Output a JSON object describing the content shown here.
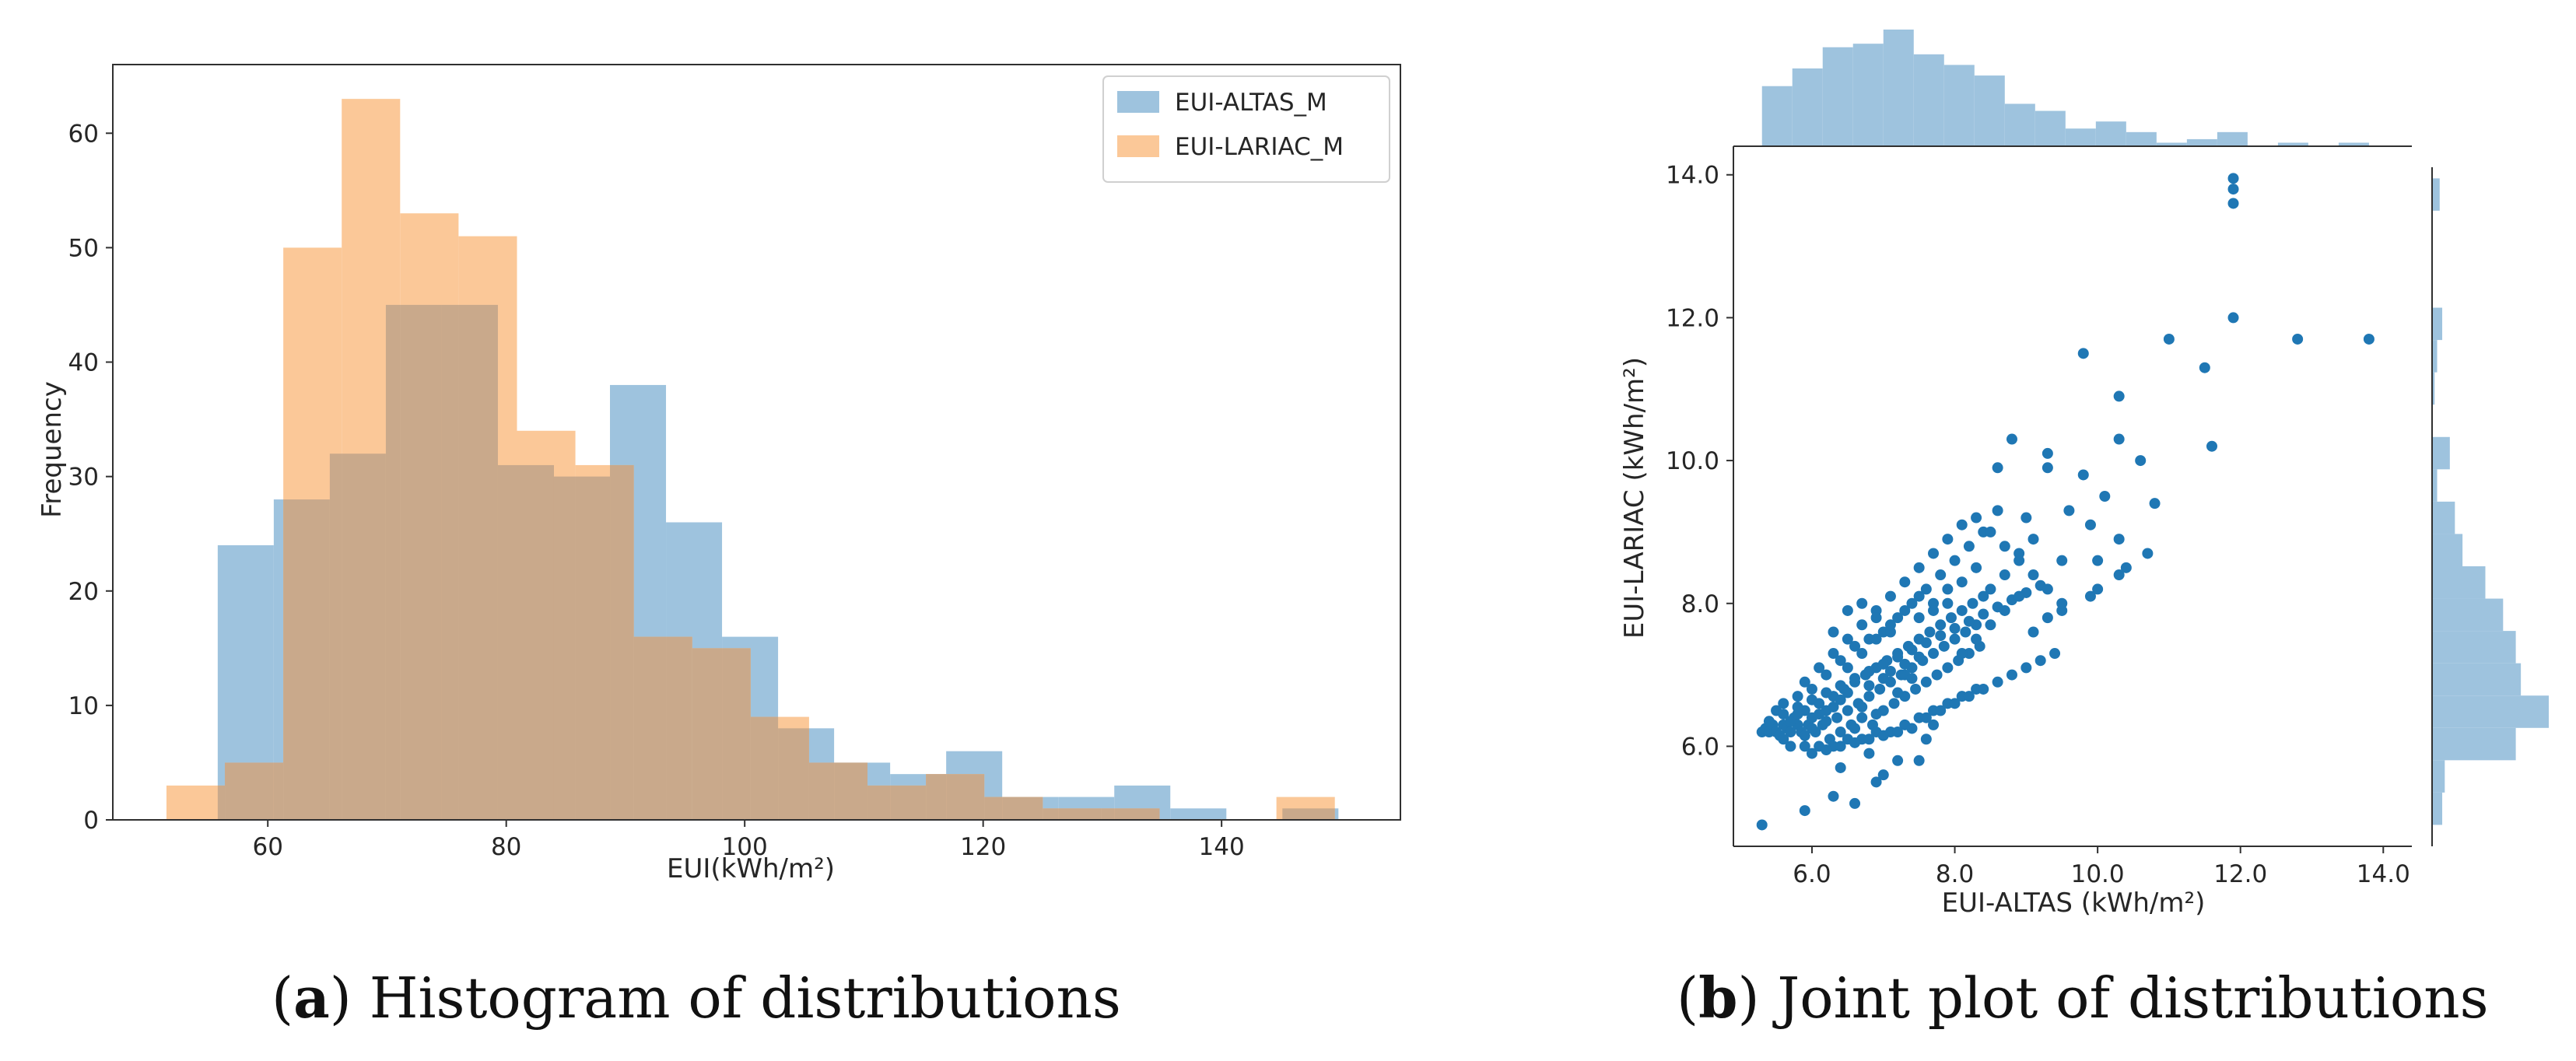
{
  "captions": {
    "a": {
      "letter": "a",
      "text": "Histogram of distributions"
    },
    "b": {
      "letter": "b",
      "text": "Joint plot of distributions"
    }
  },
  "chart_data": [
    {
      "id": "histogram",
      "type": "bar",
      "title": "",
      "xlabel": "EUI(kWh/m²)",
      "ylabel": "Frequency",
      "xlim": [
        47,
        155
      ],
      "ylim": [
        0,
        66
      ],
      "xticks": [
        60,
        80,
        100,
        120,
        140
      ],
      "yticks": [
        0,
        10,
        20,
        30,
        40,
        50,
        60
      ],
      "legend_position": "top-right",
      "colors": {
        "altas": "#9ec3de",
        "lariac": "#fbc898",
        "overlap": "#c9a98b"
      },
      "series": [
        {
          "name": "EUI-ALTAS_M",
          "bin_edges": [
            55.8,
            60.5,
            65.2,
            69.9,
            74.6,
            79.3,
            84.0,
            88.7,
            93.4,
            98.1,
            102.8,
            107.5,
            112.2,
            116.9,
            121.6,
            126.3,
            131.0,
            135.7,
            140.4,
            145.1,
            149.8
          ],
          "counts": [
            24,
            28,
            32,
            45,
            45,
            31,
            30,
            38,
            26,
            16,
            8,
            5,
            4,
            6,
            2,
            2,
            3,
            1,
            0,
            1
          ]
        },
        {
          "name": "EUI-LARIAC_M",
          "bin_edges": [
            51.5,
            56.4,
            61.3,
            66.2,
            71.1,
            76.0,
            80.9,
            85.8,
            90.7,
            95.6,
            100.5,
            105.4,
            110.3,
            115.2,
            120.1,
            125.0,
            129.9,
            134.8,
            139.7,
            144.6,
            149.5
          ],
          "counts": [
            3,
            5,
            50,
            63,
            53,
            51,
            34,
            31,
            16,
            15,
            9,
            5,
            3,
            4,
            2,
            1,
            1,
            0,
            0,
            2
          ]
        }
      ]
    },
    {
      "id": "joint-plot",
      "type": "scatter",
      "title": "",
      "xlabel": "EUI-ALTAS (kWh/m²)",
      "ylabel": "EUI-LARIAC (kWh/m²)",
      "xlim": [
        4.9,
        14.4
      ],
      "ylim": [
        4.6,
        14.4
      ],
      "xticks": [
        "6.0",
        "8.0",
        "10.0",
        "12.0",
        "14.0"
      ],
      "yticks": [
        "6.0",
        "8.0",
        "10.0",
        "12.0",
        "14.0"
      ],
      "color": "#1f77b4",
      "marginal_color": "#9ec3de",
      "points": [
        [
          11.9,
          13.95
        ],
        [
          11.9,
          13.8
        ],
        [
          11.9,
          13.6
        ],
        [
          11.9,
          12.0
        ],
        [
          12.8,
          11.7
        ],
        [
          13.8,
          11.7
        ],
        [
          11.0,
          11.7
        ],
        [
          11.5,
          11.3
        ],
        [
          9.8,
          11.5
        ],
        [
          10.3,
          10.9
        ],
        [
          11.6,
          10.2
        ],
        [
          10.3,
          10.3
        ],
        [
          10.6,
          10.0
        ],
        [
          10.8,
          9.4
        ],
        [
          8.8,
          10.3
        ],
        [
          9.3,
          10.1
        ],
        [
          9.3,
          9.9
        ],
        [
          9.8,
          9.8
        ],
        [
          10.1,
          9.5
        ],
        [
          9.6,
          9.3
        ],
        [
          8.6,
          9.9
        ],
        [
          9.9,
          9.1
        ],
        [
          10.3,
          8.9
        ],
        [
          10.0,
          8.6
        ],
        [
          10.7,
          8.7
        ],
        [
          10.3,
          8.4
        ],
        [
          10.4,
          8.5
        ],
        [
          10.0,
          8.2
        ],
        [
          9.9,
          8.1
        ],
        [
          9.5,
          7.9
        ],
        [
          9.5,
          8.6
        ],
        [
          5.3,
          4.9
        ],
        [
          5.9,
          5.1
        ],
        [
          6.6,
          5.2
        ],
        [
          6.9,
          5.5
        ],
        [
          6.3,
          5.3
        ],
        [
          7.2,
          5.8
        ],
        [
          7.5,
          5.8
        ],
        [
          6.8,
          5.9
        ],
        [
          7.0,
          5.6
        ],
        [
          6.4,
          5.7
        ],
        [
          7.6,
          6.1
        ],
        [
          7.7,
          6.3
        ],
        [
          5.3,
          6.2
        ],
        [
          5.35,
          6.25
        ],
        [
          5.4,
          6.2
        ],
        [
          5.45,
          6.3
        ],
        [
          5.5,
          6.2
        ],
        [
          5.55,
          6.15
        ],
        [
          5.6,
          6.3
        ],
        [
          5.65,
          6.25
        ],
        [
          5.7,
          6.2
        ],
        [
          5.75,
          6.4
        ],
        [
          5.8,
          6.3
        ],
        [
          5.85,
          6.2
        ],
        [
          5.9,
          6.5
        ],
        [
          5.95,
          6.3
        ],
        [
          6.0,
          6.4
        ],
        [
          6.05,
          6.2
        ],
        [
          6.1,
          6.6
        ],
        [
          6.15,
          6.3
        ],
        [
          6.2,
          6.5
        ],
        [
          6.25,
          6.1
        ],
        [
          6.3,
          6.7
        ],
        [
          6.35,
          6.4
        ],
        [
          6.4,
          6.2
        ],
        [
          6.45,
          6.8
        ],
        [
          6.5,
          6.5
        ],
        [
          6.55,
          6.3
        ],
        [
          6.6,
          6.9
        ],
        [
          6.65,
          6.6
        ],
        [
          6.7,
          6.4
        ],
        [
          6.75,
          7.0
        ],
        [
          6.8,
          6.7
        ],
        [
          6.85,
          6.3
        ],
        [
          6.9,
          7.1
        ],
        [
          6.95,
          6.8
        ],
        [
          7.0,
          6.5
        ],
        [
          7.05,
          7.2
        ],
        [
          7.1,
          6.9
        ],
        [
          7.15,
          6.6
        ],
        [
          7.2,
          7.3
        ],
        [
          7.25,
          7.0
        ],
        [
          7.3,
          6.7
        ],
        [
          7.35,
          7.4
        ],
        [
          7.4,
          7.1
        ],
        [
          7.45,
          6.8
        ],
        [
          7.5,
          7.5
        ],
        [
          7.55,
          7.2
        ],
        [
          7.6,
          6.9
        ],
        [
          7.65,
          7.6
        ],
        [
          7.7,
          7.3
        ],
        [
          7.75,
          7.0
        ],
        [
          7.8,
          7.7
        ],
        [
          7.85,
          7.4
        ],
        [
          7.9,
          7.1
        ],
        [
          7.95,
          7.8
        ],
        [
          8.0,
          7.5
        ],
        [
          8.05,
          7.2
        ],
        [
          8.1,
          7.9
        ],
        [
          8.15,
          7.6
        ],
        [
          8.2,
          7.3
        ],
        [
          8.25,
          8.0
        ],
        [
          8.3,
          7.7
        ],
        [
          8.35,
          7.4
        ],
        [
          5.5,
          6.5
        ],
        [
          5.6,
          6.6
        ],
        [
          5.7,
          6.0
        ],
        [
          5.8,
          6.7
        ],
        [
          5.9,
          6.0
        ],
        [
          6.0,
          6.8
        ],
        [
          6.1,
          6.0
        ],
        [
          6.2,
          7.0
        ],
        [
          6.3,
          6.0
        ],
        [
          6.4,
          7.2
        ],
        [
          6.5,
          6.1
        ],
        [
          6.6,
          7.4
        ],
        [
          6.7,
          6.1
        ],
        [
          6.8,
          7.5
        ],
        [
          6.9,
          6.2
        ],
        [
          7.0,
          7.6
        ],
        [
          7.1,
          6.2
        ],
        [
          7.2,
          7.8
        ],
        [
          7.3,
          6.3
        ],
        [
          7.4,
          8.0
        ],
        [
          7.5,
          6.4
        ],
        [
          7.6,
          8.2
        ],
        [
          7.7,
          6.5
        ],
        [
          7.8,
          8.4
        ],
        [
          7.9,
          6.6
        ],
        [
          8.0,
          8.6
        ],
        [
          8.1,
          6.7
        ],
        [
          8.2,
          8.8
        ],
        [
          8.3,
          6.8
        ],
        [
          8.4,
          9.0
        ],
        [
          5.4,
          6.35
        ],
        [
          5.6,
          6.45
        ],
        [
          5.8,
          6.55
        ],
        [
          6.0,
          6.65
        ],
        [
          6.2,
          6.75
        ],
        [
          6.4,
          6.85
        ],
        [
          6.6,
          6.95
        ],
        [
          6.8,
          7.05
        ],
        [
          7.0,
          7.15
        ],
        [
          7.2,
          7.25
        ],
        [
          7.4,
          7.35
        ],
        [
          7.6,
          7.45
        ],
        [
          7.8,
          7.55
        ],
        [
          8.0,
          7.65
        ],
        [
          8.2,
          7.75
        ],
        [
          8.4,
          7.85
        ],
        [
          8.6,
          7.95
        ],
        [
          8.8,
          8.05
        ],
        [
          9.0,
          8.15
        ],
        [
          9.2,
          8.25
        ],
        [
          5.9,
          6.9
        ],
        [
          6.1,
          7.1
        ],
        [
          6.3,
          7.3
        ],
        [
          6.5,
          7.5
        ],
        [
          6.7,
          7.7
        ],
        [
          6.9,
          7.9
        ],
        [
          7.1,
          8.1
        ],
        [
          7.3,
          8.3
        ],
        [
          7.5,
          8.5
        ],
        [
          7.7,
          8.7
        ],
        [
          7.9,
          8.9
        ],
        [
          8.1,
          9.1
        ],
        [
          8.3,
          9.2
        ],
        [
          8.5,
          9.0
        ],
        [
          8.7,
          8.8
        ],
        [
          8.9,
          8.6
        ],
        [
          9.1,
          8.4
        ],
        [
          9.3,
          8.2
        ],
        [
          6.0,
          5.9
        ],
        [
          6.2,
          5.95
        ],
        [
          6.4,
          6.0
        ],
        [
          6.6,
          6.05
        ],
        [
          6.8,
          6.1
        ],
        [
          7.0,
          6.15
        ],
        [
          7.2,
          6.2
        ],
        [
          7.4,
          6.25
        ],
        [
          7.6,
          6.4
        ],
        [
          7.8,
          6.5
        ],
        [
          8.0,
          6.6
        ],
        [
          8.2,
          6.7
        ],
        [
          8.4,
          6.8
        ],
        [
          8.6,
          6.9
        ],
        [
          8.8,
          7.0
        ],
        [
          9.0,
          7.1
        ],
        [
          9.2,
          7.2
        ],
        [
          9.4,
          7.3
        ],
        [
          6.5,
          7.9
        ],
        [
          6.7,
          8.0
        ],
        [
          6.9,
          7.8
        ],
        [
          7.1,
          7.6
        ],
        [
          7.3,
          7.9
        ],
        [
          7.5,
          8.1
        ],
        [
          7.7,
          8.0
        ],
        [
          7.9,
          8.2
        ],
        [
          8.1,
          8.3
        ],
        [
          8.3,
          8.5
        ],
        [
          8.5,
          8.2
        ],
        [
          8.7,
          8.4
        ],
        [
          8.9,
          8.7
        ],
        [
          9.1,
          8.9
        ],
        [
          9.0,
          9.2
        ],
        [
          8.6,
          9.3
        ],
        [
          8.4,
          8.1
        ],
        [
          6.3,
          7.6
        ],
        [
          6.5,
          7.1
        ],
        [
          6.7,
          7.3
        ],
        [
          6.9,
          7.5
        ],
        [
          7.1,
          7.7
        ],
        [
          7.3,
          7.0
        ],
        [
          7.5,
          7.8
        ],
        [
          7.7,
          7.9
        ],
        [
          7.9,
          8.0
        ],
        [
          8.1,
          7.3
        ],
        [
          8.3,
          7.5
        ],
        [
          8.5,
          7.7
        ],
        [
          8.7,
          7.9
        ],
        [
          8.9,
          8.1
        ],
        [
          9.1,
          7.6
        ],
        [
          9.3,
          7.8
        ],
        [
          9.5,
          8.0
        ],
        [
          5.6,
          6.1
        ],
        [
          5.7,
          6.35
        ],
        [
          5.8,
          6.45
        ],
        [
          5.9,
          6.15
        ],
        [
          6.0,
          6.25
        ],
        [
          6.1,
          6.45
        ],
        [
          6.2,
          6.35
        ],
        [
          6.3,
          6.55
        ],
        [
          6.4,
          6.65
        ],
        [
          6.5,
          6.75
        ],
        [
          6.6,
          6.25
        ],
        [
          6.7,
          6.55
        ],
        [
          6.8,
          6.85
        ],
        [
          6.9,
          6.45
        ],
        [
          7.0,
          6.95
        ],
        [
          7.1,
          7.05
        ],
        [
          7.2,
          6.75
        ],
        [
          7.3,
          7.15
        ],
        [
          7.4,
          6.95
        ],
        [
          7.5,
          7.25
        ]
      ]
    }
  ]
}
